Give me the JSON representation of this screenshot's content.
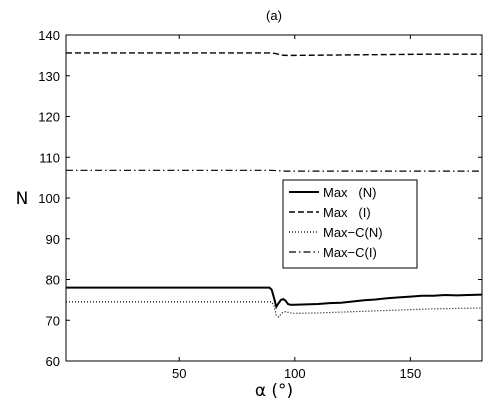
{
  "chart_data": {
    "type": "line",
    "title": "(a)",
    "xlabel": "α (°)",
    "ylabel": "N",
    "xlim": [
      1,
      181
    ],
    "ylim": [
      60,
      140
    ],
    "xticks": [
      50,
      100,
      150
    ],
    "yticks": [
      60,
      70,
      80,
      90,
      100,
      110,
      120,
      130,
      140
    ],
    "grid": false,
    "legend_position": "right-middle",
    "series": [
      {
        "name": "Max   (N)",
        "style": "solid",
        "color": "#000000",
        "points": [
          [
            1,
            78
          ],
          [
            20,
            78
          ],
          [
            40,
            78
          ],
          [
            60,
            78
          ],
          [
            80,
            78
          ],
          [
            89,
            78
          ],
          [
            90,
            77.5
          ],
          [
            91,
            75.5
          ],
          [
            92,
            73.3
          ],
          [
            93,
            74.2
          ],
          [
            94,
            75
          ],
          [
            95,
            75.2
          ],
          [
            96,
            74.8
          ],
          [
            97,
            74
          ],
          [
            98,
            73.8
          ],
          [
            100,
            73.8
          ],
          [
            105,
            73.9
          ],
          [
            110,
            74
          ],
          [
            115,
            74.2
          ],
          [
            120,
            74.3
          ],
          [
            125,
            74.6
          ],
          [
            130,
            74.9
          ],
          [
            135,
            75.1
          ],
          [
            140,
            75.4
          ],
          [
            145,
            75.6
          ],
          [
            150,
            75.8
          ],
          [
            155,
            76
          ],
          [
            160,
            76
          ],
          [
            165,
            76.2
          ],
          [
            170,
            76.1
          ],
          [
            175,
            76.2
          ],
          [
            181,
            76.3
          ]
        ]
      },
      {
        "name": "Max   (I)",
        "style": "dashed",
        "color": "#000000",
        "points": [
          [
            1,
            135.6
          ],
          [
            40,
            135.6
          ],
          [
            80,
            135.6
          ],
          [
            90,
            135.6
          ],
          [
            92,
            135.4
          ],
          [
            94,
            135.1
          ],
          [
            96,
            135
          ],
          [
            100,
            135
          ],
          [
            120,
            135.1
          ],
          [
            140,
            135.2
          ],
          [
            160,
            135.3
          ],
          [
            181,
            135.3
          ]
        ]
      },
      {
        "name": "Max−C(N)",
        "style": "dotted",
        "color": "#000000",
        "points": [
          [
            1,
            74.5
          ],
          [
            20,
            74.5
          ],
          [
            40,
            74.5
          ],
          [
            60,
            74.5
          ],
          [
            80,
            74.5
          ],
          [
            90,
            74.5
          ],
          [
            91,
            73.5
          ],
          [
            92,
            71.2
          ],
          [
            93,
            70.8
          ],
          [
            94,
            71.5
          ],
          [
            95,
            72
          ],
          [
            96,
            72.1
          ],
          [
            98,
            71.8
          ],
          [
            100,
            71.7
          ],
          [
            110,
            71.8
          ],
          [
            120,
            72
          ],
          [
            130,
            72.2
          ],
          [
            140,
            72.4
          ],
          [
            150,
            72.6
          ],
          [
            160,
            72.8
          ],
          [
            170,
            72.9
          ],
          [
            181,
            73
          ]
        ]
      },
      {
        "name": "Max−C(I)",
        "style": "dashdot",
        "color": "#000000",
        "points": [
          [
            1,
            106.8
          ],
          [
            40,
            106.8
          ],
          [
            80,
            106.8
          ],
          [
            90,
            106.8
          ],
          [
            92,
            106.7
          ],
          [
            96,
            106.6
          ],
          [
            120,
            106.6
          ],
          [
            150,
            106.6
          ],
          [
            181,
            106.6
          ]
        ]
      }
    ]
  }
}
